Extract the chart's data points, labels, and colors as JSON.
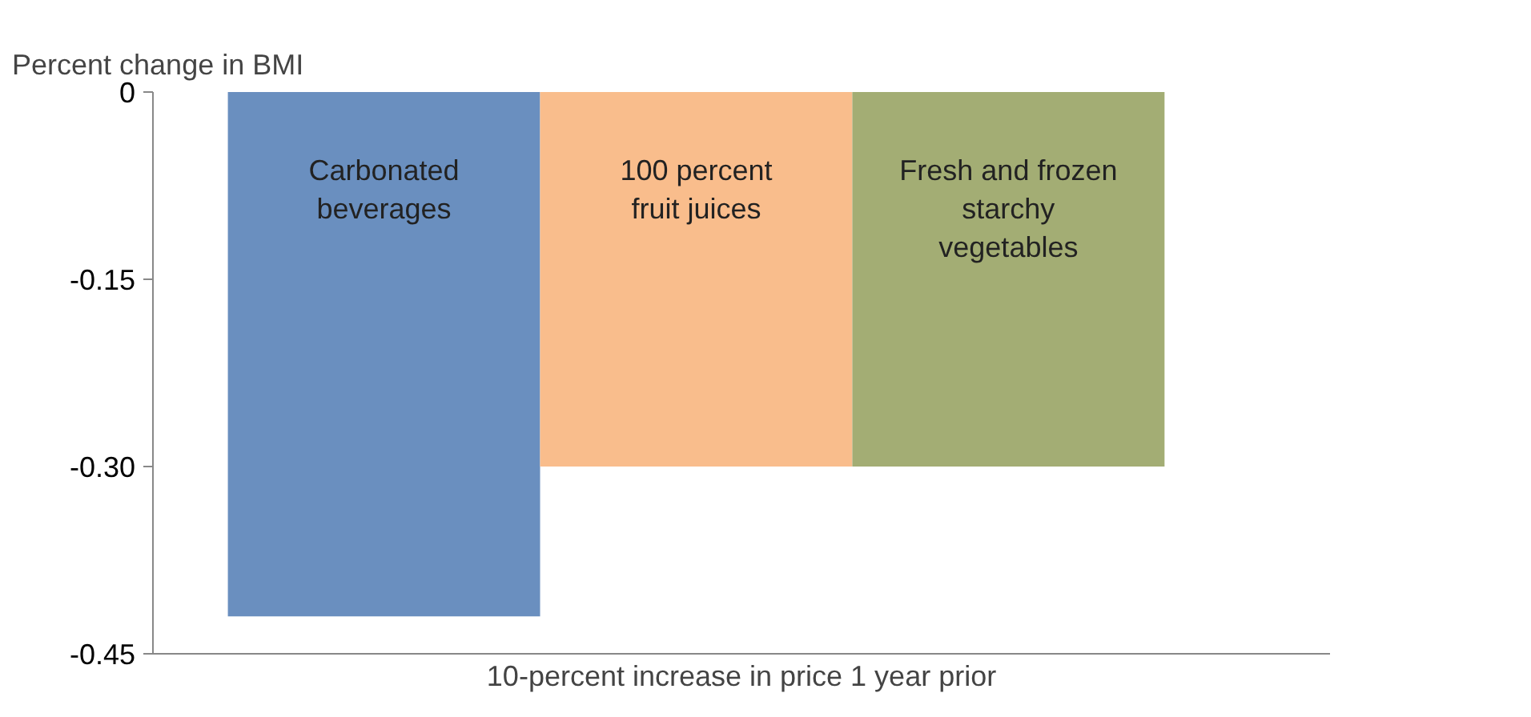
{
  "chart_data": {
    "type": "bar",
    "ylabel": "Percent change in BMI",
    "xlabel": "10-percent increase in price 1 year prior",
    "categories": [
      "Carbonated\nbeverages",
      "100 percent\nfruit juices",
      "Fresh and frozen\nstarchy\nvegetables"
    ],
    "values": [
      -0.42,
      -0.3,
      -0.3
    ],
    "colors": [
      "#6a8fbf",
      "#f9bd8c",
      "#a3ad74"
    ],
    "ylim": [
      -0.45,
      0
    ],
    "yticks": [
      0,
      {
        "value": -0.15,
        "label": "-0.15"
      },
      {
        "value": -0.3,
        "label": "-0.30"
      },
      {
        "value": -0.45,
        "label": "-0.45"
      }
    ],
    "grid": false
  }
}
